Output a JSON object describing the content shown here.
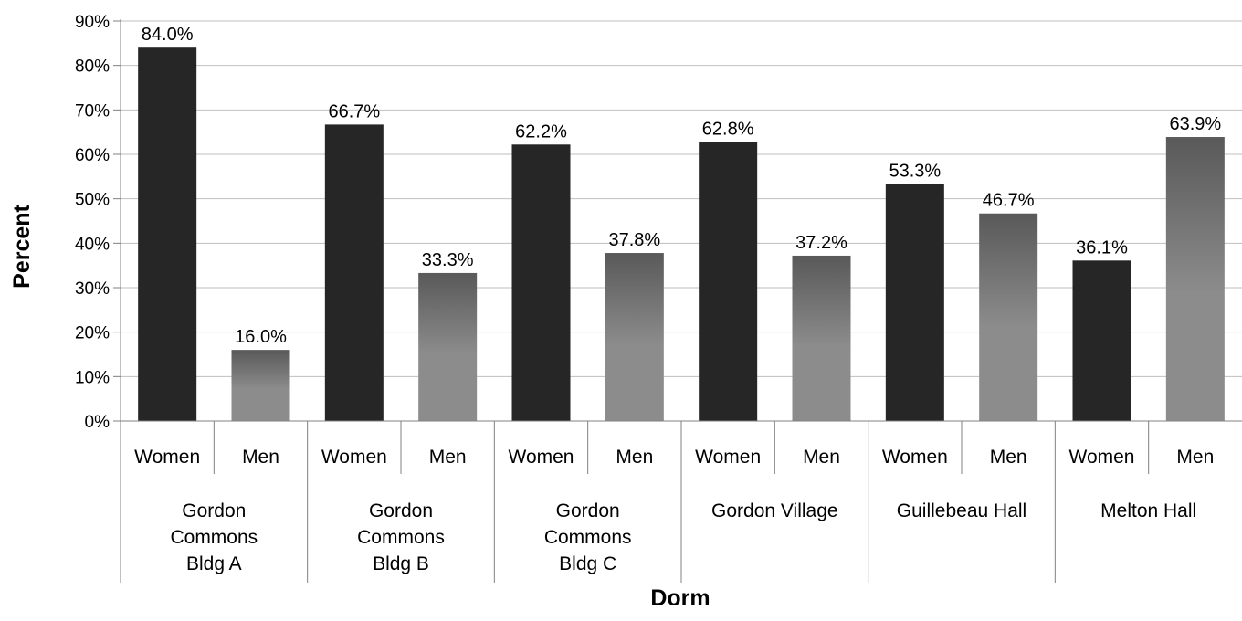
{
  "chart_data": {
    "type": "bar",
    "xlabel": "Dorm",
    "ylabel": "Percent",
    "ylim": [
      0,
      90
    ],
    "yticks": [
      0,
      10,
      20,
      30,
      40,
      50,
      60,
      70,
      80,
      90
    ],
    "ytick_labels": [
      "0%",
      "10%",
      "20%",
      "30%",
      "40%",
      "50%",
      "60%",
      "70%",
      "80%",
      "90%"
    ],
    "grid": true,
    "legend": "none",
    "colors": {
      "Women": "#262626",
      "Men_top": "#595959",
      "Men_bottom": "#8c8c8c",
      "grid": "#bfbfbf",
      "axis": "#808080"
    },
    "groups": [
      {
        "label": [
          "Gordon",
          "Commons",
          "Bldg A"
        ],
        "bars": [
          {
            "category": "Women",
            "value": 84.0,
            "label": "84.0%"
          },
          {
            "category": "Men",
            "value": 16.0,
            "label": "16.0%"
          }
        ]
      },
      {
        "label": [
          "Gordon",
          "Commons",
          "Bldg B"
        ],
        "bars": [
          {
            "category": "Women",
            "value": 66.7,
            "label": "66.7%"
          },
          {
            "category": "Men",
            "value": 33.3,
            "label": "33.3%"
          }
        ]
      },
      {
        "label": [
          "Gordon",
          "Commons",
          "Bldg C"
        ],
        "bars": [
          {
            "category": "Women",
            "value": 62.2,
            "label": "62.2%"
          },
          {
            "category": "Men",
            "value": 37.8,
            "label": "37.8%"
          }
        ]
      },
      {
        "label": [
          "Gordon Village"
        ],
        "bars": [
          {
            "category": "Women",
            "value": 62.8,
            "label": "62.8%"
          },
          {
            "category": "Men",
            "value": 37.2,
            "label": "37.2%"
          }
        ]
      },
      {
        "label": [
          "Guillebeau Hall"
        ],
        "bars": [
          {
            "category": "Women",
            "value": 53.3,
            "label": "53.3%"
          },
          {
            "category": "Men",
            "value": 46.7,
            "label": "46.7%"
          }
        ]
      },
      {
        "label": [
          "Melton Hall"
        ],
        "bars": [
          {
            "category": "Women",
            "value": 36.1,
            "label": "36.1%"
          },
          {
            "category": "Men",
            "value": 63.9,
            "label": "63.9%"
          }
        ]
      }
    ]
  }
}
